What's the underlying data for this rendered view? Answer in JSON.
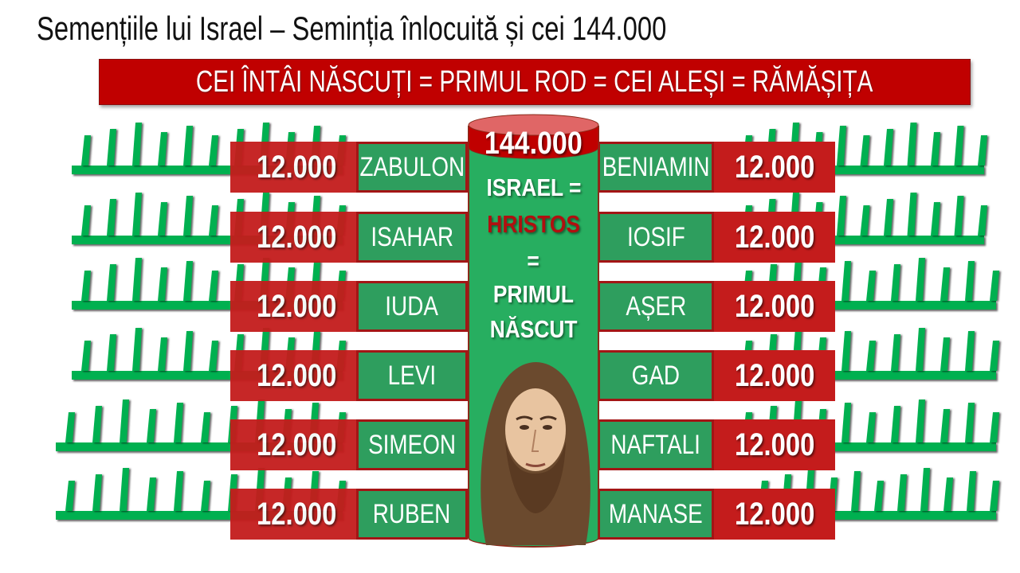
{
  "title": "Semențiile lui Israel – Seminția înlocuită și cei 144.000",
  "banner": "CEI ÎNTÂI NĂSCUȚI = PRIMUL ROD = CEI ALEȘI = RĂMĂȘIȚA",
  "center": {
    "total": "144.000",
    "line1": "ISRAEL =",
    "line2": "HRISTOS",
    "line3": "=",
    "line4": "PRIMUL",
    "line5": "NĂSCUT"
  },
  "left_tribes": [
    {
      "count": "12.000",
      "name": "ZABULON"
    },
    {
      "count": "12.000",
      "name": "ISAHAR"
    },
    {
      "count": "12.000",
      "name": "IUDA"
    },
    {
      "count": "12.000",
      "name": "LEVI"
    },
    {
      "count": "12.000",
      "name": "SIMEON"
    },
    {
      "count": "12.000",
      "name": "RUBEN"
    }
  ],
  "right_tribes": [
    {
      "count": "12.000",
      "name": "BENIAMIN"
    },
    {
      "count": "12.000",
      "name": "IOSIF"
    },
    {
      "count": "12.000",
      "name": "AȘER"
    },
    {
      "count": "12.000",
      "name": "GAD"
    },
    {
      "count": "12.000",
      "name": "NAFTALI"
    },
    {
      "count": "12.000",
      "name": "MANASE"
    }
  ],
  "colors": {
    "red": "#c41c1c",
    "green": "#2e9e5e",
    "comb_green": "#00b050",
    "cylinder": "#27ae60",
    "hristos": "#b01010"
  }
}
